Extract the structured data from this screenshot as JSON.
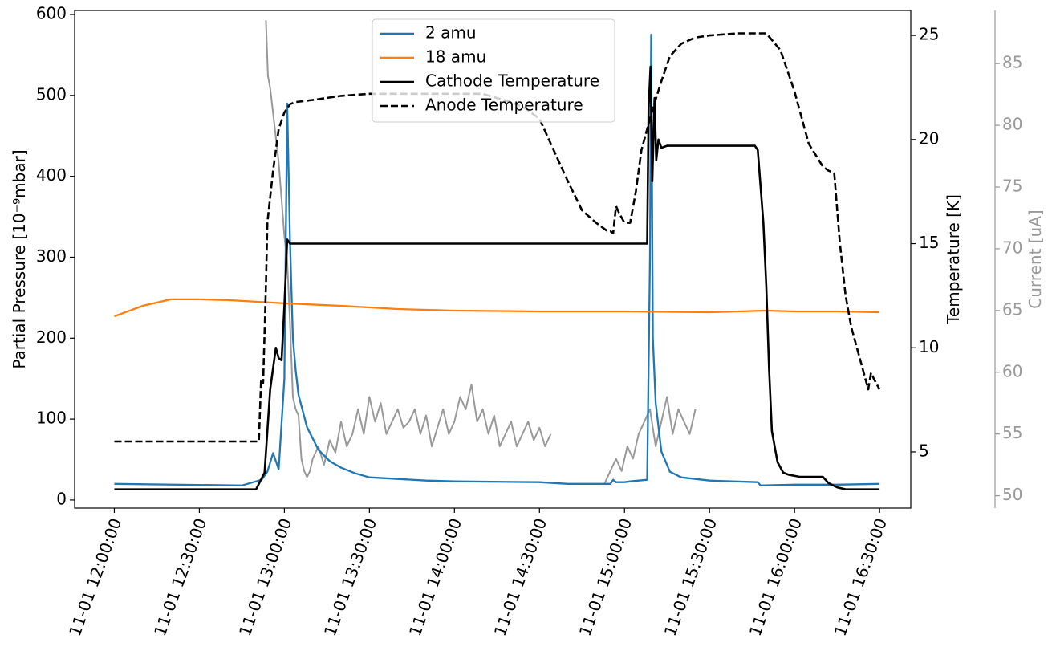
{
  "chart_data": {
    "type": "line",
    "x_axis": {
      "unit": "datetime",
      "ticks": [
        "11-01 12:00:00",
        "11-01 12:30:00",
        "11-01 13:00:00",
        "11-01 13:30:00",
        "11-01 14:00:00",
        "11-01 14:30:00",
        "11-01 15:00:00",
        "11-01 15:30:00",
        "11-01 16:00:00",
        "11-01 16:30:00"
      ],
      "tick_minutes": [
        0,
        30,
        60,
        90,
        120,
        150,
        180,
        210,
        240,
        270
      ],
      "range_minutes": [
        -14,
        281
      ],
      "tick_rotation": -70
    },
    "y_left": {
      "label": "Partial Pressure [10⁻⁹mbar]",
      "ylim": [
        -10,
        605
      ],
      "ticks": [
        "0",
        "100",
        "200",
        "300",
        "400",
        "500",
        "600"
      ],
      "tick_values": [
        0,
        100,
        200,
        300,
        400,
        500,
        600
      ]
    },
    "y_right": {
      "label": "Temperature [K]",
      "ylim": [
        2.3,
        26.2
      ],
      "ticks": [
        "5",
        "10",
        "15",
        "20",
        "25"
      ],
      "tick_values": [
        5,
        10,
        15,
        20,
        25
      ]
    },
    "y_current": {
      "label": "Current [uA]",
      "color": "#999999",
      "ylim": [
        49.0,
        89.3
      ],
      "ticks": [
        "50",
        "55",
        "60",
        "65",
        "70",
        "75",
        "80",
        "85"
      ],
      "tick_values": [
        50,
        55,
        60,
        65,
        70,
        75,
        80,
        85
      ]
    },
    "legend": {
      "position": "top-center"
    },
    "series": [
      {
        "name": "2 amu",
        "axis": "left",
        "color": "#1f77b4",
        "style": "solid",
        "x": [
          0,
          45,
          52,
          54,
          56,
          58,
          60,
          61,
          62,
          63,
          64,
          65,
          68,
          72,
          76,
          80,
          85,
          90,
          100,
          110,
          120,
          150,
          160,
          175,
          176,
          177,
          180,
          182,
          188,
          189,
          189.4,
          190,
          191,
          193,
          196,
          200,
          210,
          227,
          228,
          240,
          255,
          270
        ],
        "y": [
          20,
          18,
          25,
          35,
          58,
          38,
          150,
          490,
          320,
          200,
          160,
          130,
          90,
          62,
          48,
          40,
          33,
          28,
          26,
          24,
          23,
          22,
          20,
          20,
          25,
          22,
          22,
          23,
          25,
          300,
          575,
          200,
          120,
          60,
          35,
          28,
          24,
          22,
          18,
          19,
          19,
          20
        ]
      },
      {
        "name": "18 amu",
        "axis": "left",
        "color": "#ff7f0e",
        "style": "solid",
        "x": [
          0,
          10,
          20,
          30,
          40,
          50,
          60,
          80,
          100,
          120,
          150,
          180,
          210,
          230,
          240,
          255,
          270
        ],
        "y": [
          227,
          240,
          248,
          248,
          247,
          245,
          243,
          240,
          236,
          234,
          233,
          233,
          232,
          234,
          233,
          233,
          232
        ]
      },
      {
        "name": "Cathode Temperature",
        "axis": "right",
        "color": "#000000",
        "style": "solid",
        "x": [
          0,
          50,
          53,
          55,
          57,
          58,
          59,
          60,
          61,
          62,
          80,
          100,
          120,
          150,
          160,
          175,
          188,
          188.5,
          189.2,
          189.8,
          190.6,
          191.2,
          192,
          193,
          195,
          200,
          210,
          220,
          226,
          227,
          229,
          230,
          231,
          232,
          234,
          236,
          238,
          242,
          248,
          250,
          252,
          255,
          258,
          265,
          270
        ],
        "y": [
          3.2,
          3.2,
          4,
          8,
          10,
          9.5,
          9.4,
          12,
          15.2,
          15,
          15,
          15,
          15,
          15,
          15,
          15,
          15,
          21.5,
          23.5,
          18,
          22,
          19,
          20,
          19.6,
          19.7,
          19.7,
          19.7,
          19.7,
          19.7,
          19.5,
          16,
          13,
          9,
          6,
          4.5,
          4,
          3.9,
          3.8,
          3.8,
          3.8,
          3.5,
          3.3,
          3.2,
          3.2,
          3.2
        ]
      },
      {
        "name": "Anode Temperature",
        "axis": "right",
        "color": "#000000",
        "style": "dashed",
        "x": [
          0,
          30,
          51,
          51.8,
          52.5,
          53.5,
          54,
          56,
          58,
          60,
          62,
          64,
          70,
          80,
          90,
          100,
          110,
          120,
          130,
          140,
          145,
          150,
          155,
          160,
          165,
          170,
          174,
          175,
          176,
          177,
          178,
          180,
          182,
          184,
          186,
          188,
          190,
          193,
          196,
          200,
          205,
          210,
          215,
          220,
          225,
          228,
          230,
          235,
          240,
          245,
          250,
          252,
          254,
          256,
          258,
          260,
          262,
          265,
          266,
          267,
          268,
          270
        ],
        "y": [
          5.5,
          5.5,
          5.5,
          8.5,
          8.3,
          13,
          16,
          18.5,
          20.5,
          21.3,
          21.7,
          21.8,
          21.9,
          22.1,
          22.2,
          22.2,
          22.2,
          22.2,
          22.2,
          21.8,
          21.5,
          21,
          19.5,
          18,
          16.6,
          16,
          15.6,
          15.6,
          15.5,
          16.8,
          16.5,
          16,
          16,
          17.5,
          19.5,
          20.5,
          21.5,
          22.8,
          24,
          24.6,
          24.9,
          25.0,
          25.05,
          25.1,
          25.1,
          25.1,
          25.1,
          24.3,
          22.3,
          19.8,
          18.7,
          18.5,
          18.4,
          15,
          12.5,
          11,
          10,
          8.5,
          8,
          8.8,
          8.5,
          8.0
        ]
      },
      {
        "name": "",
        "axis": "current",
        "color": "#999999",
        "style": "solid",
        "segments": [
          {
            "x": [
              53.5,
              54.2,
              55,
              56,
              57,
              58,
              59,
              60,
              61,
              62,
              63,
              64,
              65,
              66,
              67,
              68,
              69,
              70,
              72,
              74,
              76,
              78,
              80,
              82,
              84,
              86,
              88,
              90,
              92,
              94,
              96,
              98,
              100,
              102,
              104,
              106,
              108,
              110,
              112,
              114,
              116,
              118,
              120,
              122,
              124,
              126,
              128,
              130,
              132,
              134,
              136,
              138,
              140,
              142,
              144,
              146,
              148,
              150,
              152,
              154
            ],
            "y": [
              88.5,
              84,
              83,
              81,
              79,
              77,
              74,
              71,
              69,
              64,
              58,
              57,
              56.5,
              53,
              52,
              51.5,
              52,
              53,
              54,
              52.5,
              54.5,
              53.5,
              56,
              54,
              55,
              57,
              55,
              58,
              56,
              57.5,
              55,
              56,
              57,
              55.5,
              56,
              57,
              55,
              56.5,
              54,
              55.5,
              57,
              55,
              56,
              58,
              57,
              59,
              56,
              57,
              55,
              56.5,
              54,
              55,
              56,
              54,
              55,
              56,
              54.5,
              55.5,
              54,
              55
            ]
          },
          {
            "x": [
              173,
              175,
              177,
              179,
              181,
              183,
              185,
              187,
              189,
              191,
              193,
              195,
              197,
              199,
              201,
              203,
              205
            ],
            "y": [
              51,
              52,
              53,
              52,
              54,
              53,
              55,
              56,
              57,
              54,
              56,
              58,
              55,
              57,
              56,
              55,
              57
            ]
          }
        ]
      }
    ]
  }
}
